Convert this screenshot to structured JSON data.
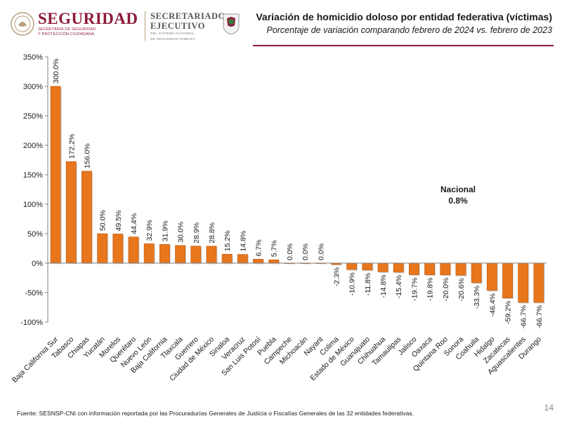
{
  "header": {
    "brand_name": "SEGURIDAD",
    "brand_sub_1": "SECRETARÍA DE SEGURIDAD",
    "brand_sub_2": "Y PROTECCIÓN CIUDADANA",
    "se_name_1": "SECRETARIADO",
    "se_name_2": "EJECUTIVO",
    "se_sub_1": "DEL SISTEMA NACIONAL",
    "se_sub_2": "DE SEGURIDAD PÚBLICA"
  },
  "title": "Variación de homicidio doloso por entidad federativa (víctimas)",
  "subtitle": "Porcentaje de variación comparando febrero de 2024 vs. febrero de 2023",
  "nacional": {
    "label": "Nacional",
    "value": "0.8%"
  },
  "footer": "Fuente: SESNSP-CNI con información reportada por las Procuradurías Generales de Justicia o Fiscalías Generales de las 32 entidades federativas.",
  "page_number": "14",
  "colors": {
    "bar": "#e8761c",
    "bar_dark": "#b85810",
    "accent": "#8c1c3a"
  },
  "chart_data": {
    "type": "bar",
    "title": "Variación de homicidio doloso por entidad federativa (víctimas)",
    "ylim": [
      -100,
      350
    ],
    "yticks": [
      -100,
      -50,
      0,
      50,
      100,
      150,
      200,
      250,
      300,
      350
    ],
    "ytick_labels": [
      "-100%",
      "-50%",
      "0%",
      "50%",
      "100%",
      "150%",
      "200%",
      "250%",
      "300%",
      "350%"
    ],
    "grid": false,
    "categories": [
      "Baja California Sur",
      "Tabasco",
      "Chiapas",
      "Yucatán",
      "Morelos",
      "Querétaro",
      "Nuevo León",
      "Baja California",
      "Tlaxcala",
      "Guerrero",
      "Ciudad de México",
      "Sinaloa",
      "Veracruz",
      "San Luis Potosí",
      "Puebla",
      "Campeche",
      "Michoacán",
      "Nayarit",
      "Colima",
      "Estado de México",
      "Guanajuato",
      "Chihuahua",
      "Tamaulipas",
      "Jalisco",
      "Oaxaca",
      "Quintana Roo",
      "Sonora",
      "Coahuila",
      "Hidalgo",
      "Zacatecas",
      "Aguascalientes",
      "Durango"
    ],
    "values": [
      300.0,
      172.2,
      156.0,
      50.0,
      49.5,
      44.4,
      32.9,
      31.9,
      30.0,
      28.9,
      28.8,
      15.2,
      14.8,
      6.7,
      5.7,
      0.0,
      0.0,
      0.0,
      -2.3,
      -10.9,
      -11.8,
      -14.8,
      -15.4,
      -19.7,
      -19.8,
      -20.0,
      -20.6,
      -33.3,
      -46.4,
      -59.2,
      -66.7,
      -66.7
    ],
    "labels": [
      "300.0%",
      "172.2%",
      "156.0%",
      "50.0%",
      "49.5%",
      "44.4%",
      "32.9%",
      "31.9%",
      "30.0%",
      "28.9%",
      "28.8%",
      "15.2%",
      "14.8%",
      "6.7%",
      "5.7%",
      "0.0%",
      "0.0%",
      "0.0%",
      "-2.3%",
      "-10.9%",
      "-11.8%",
      "-14.8%",
      "-15.4%",
      "-19.7%",
      "-19.8%",
      "-20.0%",
      "-20.6%",
      "-33.3%",
      "-46.4%",
      "-59.2%",
      "-66.7%",
      "-66.7%"
    ]
  }
}
